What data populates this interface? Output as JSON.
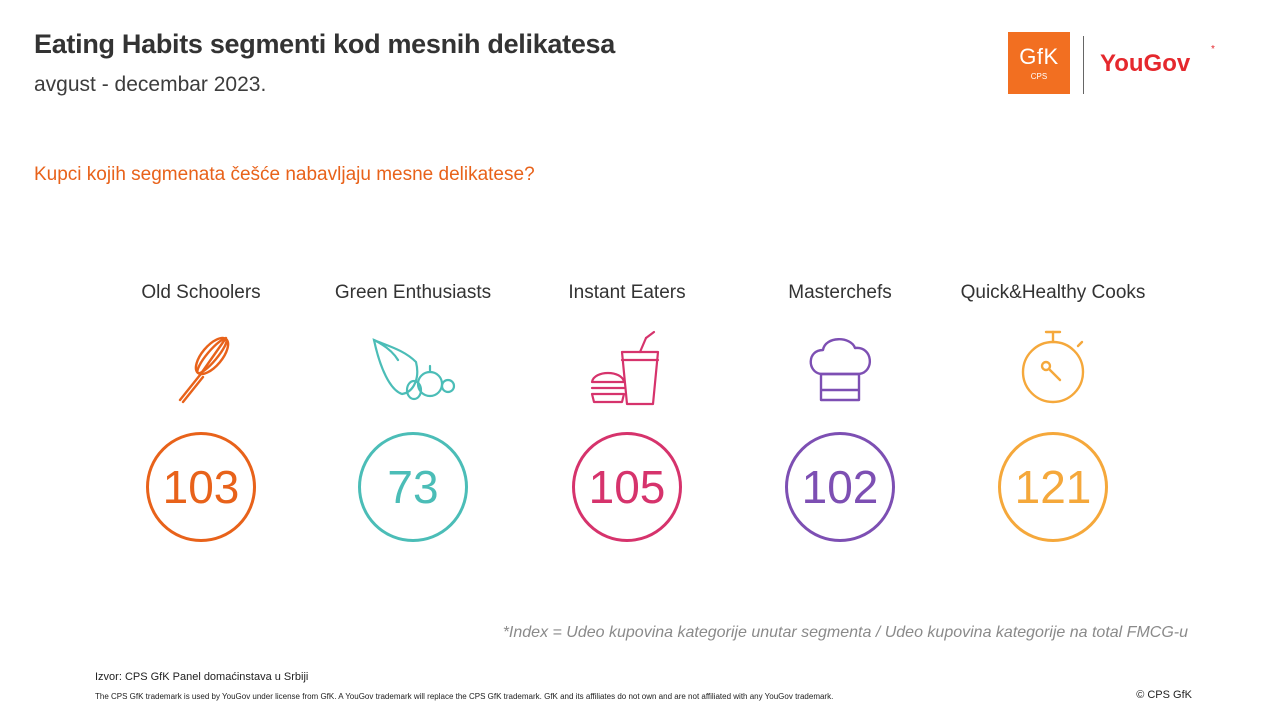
{
  "header": {
    "title": "Eating Habits segmenti kod mesnih delikatesa",
    "subtitle": "avgust - decembar 2023.",
    "question": "Kupci kojih segmenata češće nabavljaju mesne delikatese?"
  },
  "logos": {
    "gfk_main": "GfK",
    "gfk_sub": "CPS",
    "yougov": "YouGov",
    "yougov_mark": "*"
  },
  "segments": [
    {
      "label": "Old Schoolers",
      "index": "103",
      "color": "#e8621a",
      "icon": "whisk-icon"
    },
    {
      "label": "Green Enthusiasts",
      "index": "73",
      "color": "#4bbdb7",
      "icon": "cornucopia-icon"
    },
    {
      "label": "Instant Eaters",
      "index": "105",
      "color": "#d6336c",
      "icon": "fast-food-icon"
    },
    {
      "label": "Masterchefs",
      "index": "102",
      "color": "#7d4fb3",
      "icon": "chef-hat-icon"
    },
    {
      "label": "Quick&Healthy Cooks",
      "index": "121",
      "color": "#f5a83b",
      "icon": "stopwatch-icon"
    }
  ],
  "footer": {
    "footnote": "*Index = Udeo kupovina kategorije unutar segmenta / Udeo kupovina kategorije na total FMCG-u",
    "source": "Izvor: CPS GfK Panel domaćinstava u Srbiji",
    "trademark": "The CPS GfK trademark is used by YouGov under license from GfK. A YouGov trademark will replace the CPS GfK trademark. GfK and its affiliates do not own and are not affiliated with any YouGov trademark.",
    "copyright": "© CPS GfK"
  }
}
